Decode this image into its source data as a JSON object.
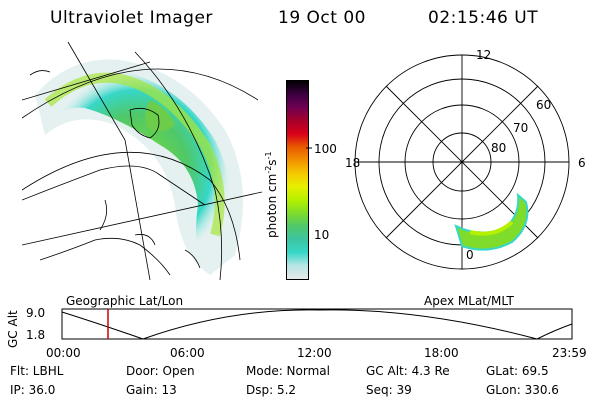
{
  "header": {
    "instrument": "Ultraviolet Imager",
    "date": "19 Oct 00",
    "time": "02:15:46 UT"
  },
  "left_panel": {
    "caption": "Geographic Lat/Lon"
  },
  "colorbar": {
    "unit_prefix": "photon cm",
    "exp1": "-2",
    "s": "s",
    "exp2": "-1",
    "tick_high": "100",
    "tick_low": "10",
    "colors": [
      "#e8e8e8",
      "#b9e6e6",
      "#37d7c8",
      "#3ec4a3",
      "#4fc86a",
      "#7fdc2a",
      "#b5f000",
      "#e8ef00",
      "#f5c800",
      "#f29000",
      "#e85a00",
      "#d9001a",
      "#a6002a",
      "#700052",
      "#3a0040",
      "#000000"
    ]
  },
  "polar_panel": {
    "caption": "Apex MLat/MLT",
    "mlt_top": "12",
    "mlt_left": "18",
    "mlt_right": "6",
    "mlt_bottom": "0",
    "lat_60": "60",
    "lat_70": "70",
    "lat_80": "80"
  },
  "altitude_plot": {
    "ylabel": "GC Alt",
    "ymax": "9.0",
    "ymin": "1.8",
    "xticks": [
      "00:00",
      "06:00",
      "12:00",
      "18:00",
      "23:59"
    ],
    "current_marker_color": "#cc0000"
  },
  "info": {
    "filter": "Flt: LBHL",
    "door": "Door: Open",
    "mode": "Mode: Normal",
    "gc_alt": "GC Alt: 4.3 Re",
    "glat": "GLat:  69.5",
    "ip": "IP: 36.0",
    "gain": "Gain: 13",
    "dsp": "Dsp:     5.2",
    "seq": "Seq: 39",
    "glon": "GLon: 330.6"
  }
}
